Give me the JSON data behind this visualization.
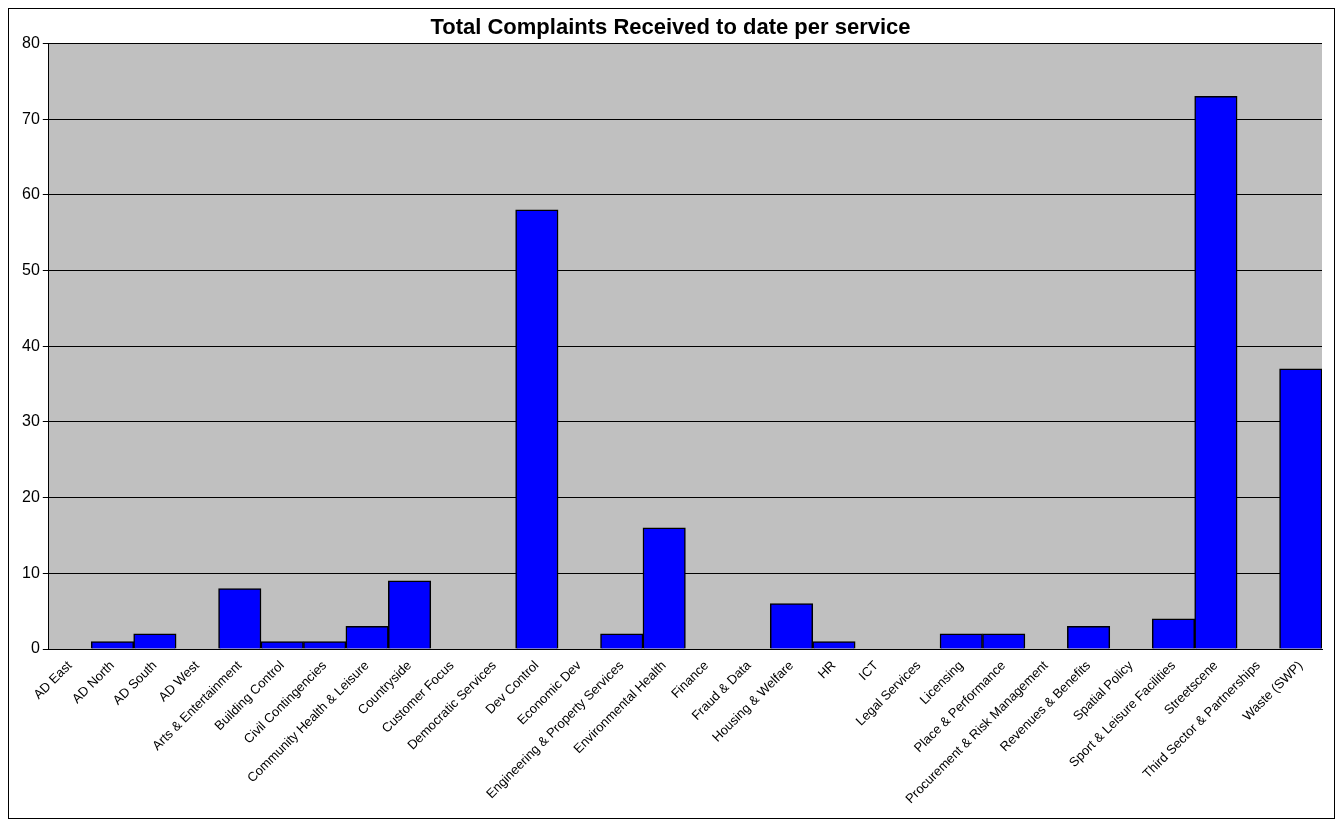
{
  "chart_data": {
    "type": "bar",
    "title": "Total Complaints Received to date per service",
    "categories": [
      "AD East",
      "AD North",
      "AD South",
      "AD West",
      "Arts & Entertainment",
      "Building Control",
      "Civil Contingencies",
      "Community Health & Leisure",
      "Countryside",
      "Customer Focus",
      "Democratic Services",
      "Dev Control",
      "Economic Dev",
      "Engineering & Property Services",
      "Environmental Health",
      "Finance",
      "Fraud & Data",
      "Housing & Welfare",
      "HR",
      "ICT",
      "Legal Services",
      "Licensing",
      "Place & Performance",
      "Procurement & Risk Management",
      "Revenues & Benefits",
      "Spatial Policy",
      "Sport & Leisure Facilities",
      "Streetscene",
      "Third Sector & Partnerships",
      "Waste (SWP)"
    ],
    "values": [
      0,
      1,
      2,
      0,
      8,
      1,
      1,
      3,
      9,
      0,
      0,
      58,
      0,
      2,
      16,
      0,
      0,
      6,
      1,
      0,
      0,
      2,
      2,
      0,
      3,
      0,
      4,
      73,
      0,
      37
    ],
    "color": "#0000ff",
    "ylim": [
      0,
      80
    ],
    "yticks": [
      0,
      10,
      20,
      30,
      40,
      50,
      60,
      70,
      80
    ],
    "grid": "y",
    "legend": false
  }
}
